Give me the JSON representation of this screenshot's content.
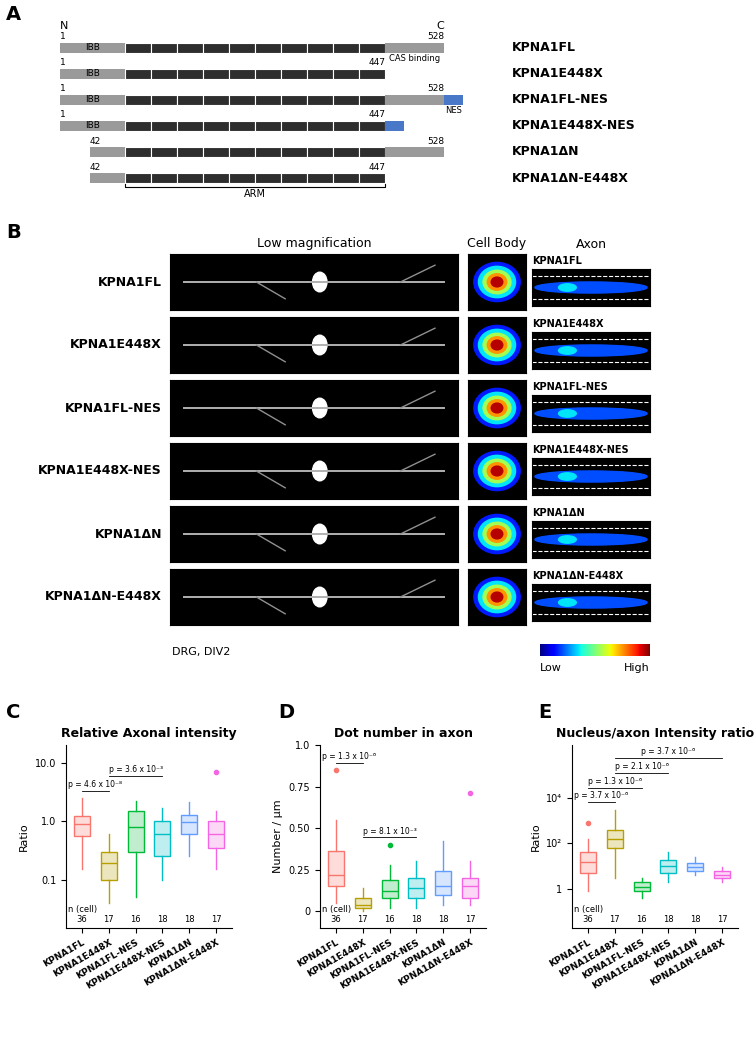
{
  "panel_labels": [
    "A",
    "B",
    "C",
    "D",
    "E"
  ],
  "diagram": {
    "terminals": {
      "n": "N",
      "c": "C"
    },
    "domain_labels": {
      "ibb": "IBB",
      "cas": "CAS binding",
      "nes": "NES",
      "arm": "ARM"
    },
    "constructs": [
      {
        "name": "KPNA1FL",
        "start": 1,
        "end": 528,
        "nes": false
      },
      {
        "name": "KPNA1E448X",
        "start": 1,
        "end": 447,
        "nes": false
      },
      {
        "name": "KPNA1FL-NES",
        "start": 1,
        "end": 528,
        "nes": true
      },
      {
        "name": "KPNA1E448X-NES",
        "start": 1,
        "end": 447,
        "nes": true
      },
      {
        "name": "KPNA1ΔN",
        "start": 42,
        "end": 528,
        "nes": false
      },
      {
        "name": "KPNA1ΔN-E448X",
        "start": 42,
        "end": 447,
        "nes": false
      }
    ]
  },
  "images": {
    "headers": [
      "Low magnification",
      "Cell Body",
      "Axon"
    ],
    "rows": [
      "KPNA1FL",
      "KPNA1E448X",
      "KPNA1FL-NES",
      "KPNA1E448X-NES",
      "KPNA1ΔN",
      "KPNA1ΔN-E448X"
    ],
    "caption": "DRG, DIV2",
    "colorbar": {
      "low": "Low",
      "high": "High"
    }
  },
  "chart_data": [
    {
      "type": "box",
      "title": "Relative Axonal intensity",
      "y_label": "Ratio",
      "log": "y",
      "grid": false,
      "categories": [
        "KPNA1FL",
        "KPNA1E448X",
        "KPNA1FL-NES",
        "KPNA1E448X-NES",
        "KPNA1ΔN",
        "KPNA1ΔN-E448X"
      ],
      "colors": [
        "#F8766D",
        "#B79F00",
        "#00BA38",
        "#00BFC4",
        "#619CFF",
        "#F564E3"
      ],
      "ylim": [
        0.015,
        20
      ],
      "yticks": [
        0.1,
        {
          "value": 1,
          "label": "1.0"
        },
        {
          "value": 10,
          "label": "10.0"
        }
      ],
      "boxes": [
        {
          "median": 0.9,
          "q1": 0.55,
          "q3": 1.25,
          "whisker_low": 0.15,
          "whisker_high": 2.5,
          "outliers": []
        },
        {
          "median": 0.19,
          "q1": 0.1,
          "q3": 0.3,
          "whisker_low": 0.04,
          "whisker_high": 0.6,
          "outliers": []
        },
        {
          "median": 0.8,
          "q1": 0.3,
          "q3": 1.5,
          "whisker_low": 0.05,
          "whisker_high": 2.2,
          "outliers": []
        },
        {
          "median": 0.6,
          "q1": 0.25,
          "q3": 1.0,
          "whisker_low": 0.1,
          "whisker_high": 1.7,
          "outliers": []
        },
        {
          "median": 0.95,
          "q1": 0.6,
          "q3": 1.3,
          "whisker_low": 0.25,
          "whisker_high": 2.1,
          "outliers": []
        },
        {
          "median": 0.6,
          "q1": 0.35,
          "q3": 1.0,
          "whisker_low": 0.15,
          "whisker_high": 1.5,
          "outliers": [
            7.0
          ]
        }
      ],
      "n_label": "n (cell)",
      "n": [
        36,
        17,
        16,
        18,
        18,
        17
      ],
      "comparisons": [
        {
          "pair": [
            "KPNA1FL",
            "KPNA1E448X"
          ],
          "label": "p = 4.6 x 10⁻⁸"
        },
        {
          "pair": [
            "KPNA1E448X",
            "KPNA1E448X-NES"
          ],
          "label": "p = 3.6 x 10⁻³"
        }
      ]
    },
    {
      "type": "box",
      "title": "Dot number in axon",
      "y_label": "Number / µm",
      "grid": false,
      "categories": [
        "KPNA1FL",
        "KPNA1E448X",
        "KPNA1FL-NES",
        "KPNA1E448X-NES",
        "KPNA1ΔN",
        "KPNA1ΔN-E448X"
      ],
      "colors": [
        "#F8766D",
        "#B79F00",
        "#00BA38",
        "#00BFC4",
        "#619CFF",
        "#F564E3"
      ],
      "ylim": [
        -0.1,
        1.0
      ],
      "yticks": [
        0,
        0.25,
        {
          "value": 0.5,
          "label": "0.50"
        },
        0.75,
        {
          "value": 1.0,
          "label": "1.0"
        }
      ],
      "boxes": [
        {
          "median": 0.22,
          "q1": 0.15,
          "q3": 0.36,
          "whisker_low": 0.05,
          "whisker_high": 0.55,
          "outliers": [
            0.85
          ]
        },
        {
          "median": 0.04,
          "q1": 0.02,
          "q3": 0.08,
          "whisker_low": 0.0,
          "whisker_high": 0.14,
          "outliers": []
        },
        {
          "median": 0.12,
          "q1": 0.08,
          "q3": 0.19,
          "whisker_low": 0.02,
          "whisker_high": 0.28,
          "outliers": [
            0.4
          ]
        },
        {
          "median": 0.14,
          "q1": 0.08,
          "q3": 0.2,
          "whisker_low": 0.02,
          "whisker_high": 0.3,
          "outliers": []
        },
        {
          "median": 0.15,
          "q1": 0.1,
          "q3": 0.24,
          "whisker_low": 0.04,
          "whisker_high": 0.42,
          "outliers": []
        },
        {
          "median": 0.15,
          "q1": 0.08,
          "q3": 0.2,
          "whisker_low": 0.04,
          "whisker_high": 0.3,
          "outliers": [
            0.71
          ]
        }
      ],
      "n_label": "n (cell)",
      "n": [
        36,
        17,
        16,
        18,
        18,
        17
      ],
      "comparisons": [
        {
          "pair": [
            "KPNA1FL",
            "KPNA1E448X"
          ],
          "label": "p = 1.3 x 10⁻⁶"
        },
        {
          "pair": [
            "KPNA1E448X",
            "KPNA1E448X-NES"
          ],
          "label": "p = 8.1 x 10⁻³"
        }
      ]
    },
    {
      "type": "box",
      "title": "Nucleus/axon Intensity ratio",
      "y_label": "Ratio",
      "log": "y",
      "grid": false,
      "categories": [
        "KPNA1FL",
        "KPNA1E448X",
        "KPNA1FL-NES",
        "KPNA1E448X-NES",
        "KPNA1ΔN",
        "KPNA1ΔN-E448X"
      ],
      "colors": [
        "#F8766D",
        "#B79F00",
        "#00BA38",
        "#00BFC4",
        "#619CFF",
        "#F564E3"
      ],
      "ylim": [
        0.02,
        2000000
      ],
      "yticks": [
        1,
        {
          "value": 100,
          "label": "10²"
        },
        {
          "value": 10000,
          "label": "10⁴"
        }
      ],
      "boxes": [
        {
          "median": 15,
          "q1": 5,
          "q3": 40,
          "whisker_low": 0.8,
          "whisker_high": 150,
          "outliers": [
            800
          ]
        },
        {
          "median": 150,
          "q1": 60,
          "q3": 400,
          "whisker_low": 3,
          "whisker_high": 3000,
          "outliers": []
        },
        {
          "median": 1.2,
          "q1": 0.8,
          "q3": 2,
          "whisker_low": 0.4,
          "whisker_high": 3,
          "outliers": []
        },
        {
          "median": 10,
          "q1": 5,
          "q3": 18,
          "whisker_low": 2,
          "whisker_high": 40,
          "outliers": []
        },
        {
          "median": 9,
          "q1": 6,
          "q3": 14,
          "whisker_low": 4,
          "whisker_high": 25,
          "outliers": []
        },
        {
          "median": 4,
          "q1": 3,
          "q3": 6,
          "whisker_low": 2,
          "whisker_high": 9,
          "outliers": []
        }
      ],
      "n_label": "n (cell)",
      "n": [
        36,
        17,
        16,
        18,
        18,
        17
      ],
      "comparisons": [
        {
          "pair": [
            "KPNA1FL",
            "KPNA1E448X"
          ],
          "label": "p = 3.7 x 10⁻⁶"
        },
        {
          "pair": [
            "KPNA1FL",
            "KPNA1FL-NES"
          ],
          "label": "p = 1.3 x 10⁻⁶"
        },
        {
          "pair": [
            "KPNA1E448X",
            "KPNA1E448X-NES"
          ],
          "label": "p = 2.1 x 10⁻⁶"
        },
        {
          "pair": [
            "KPNA1E448X",
            "KPNA1ΔN-E448X"
          ],
          "label": "p = 3.7 x 10⁻⁶"
        }
      ]
    }
  ]
}
